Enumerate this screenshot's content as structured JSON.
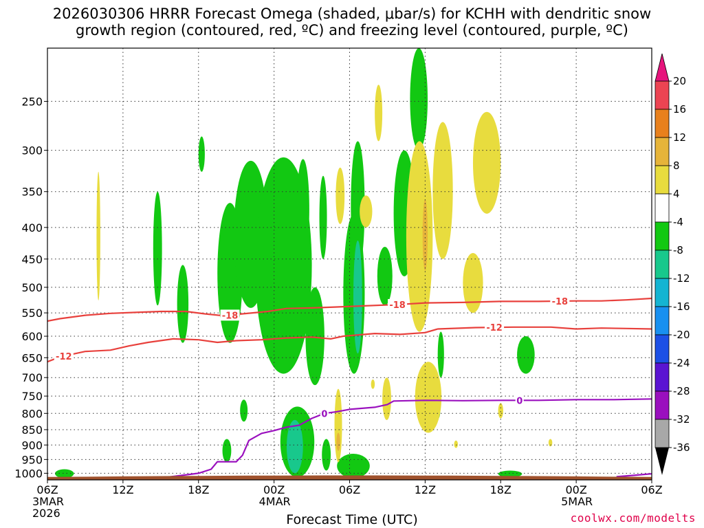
{
  "title_lines": [
    "2026030306 HRRR Forecast Omega (shaded, μbar/s) for KCHH with dendritic snow",
    "growth region (contoured, red, ºC) and freezing level (contoured, purple, ºC)"
  ],
  "credit": "coolwx.com/modelts",
  "chart_data": {
    "type": "heatmap",
    "xlabel": "Forecast Time (UTC)",
    "x_range_hours": [
      0,
      48
    ],
    "x_ticks": [
      {
        "h": 0,
        "lines": [
          "06Z",
          "3MAR",
          "2026"
        ]
      },
      {
        "h": 6,
        "lines": [
          "12Z"
        ]
      },
      {
        "h": 12,
        "lines": [
          "18Z"
        ]
      },
      {
        "h": 18,
        "lines": [
          "00Z",
          "4MAR"
        ]
      },
      {
        "h": 24,
        "lines": [
          "06Z"
        ]
      },
      {
        "h": 30,
        "lines": [
          "12Z"
        ]
      },
      {
        "h": 36,
        "lines": [
          "18Z"
        ]
      },
      {
        "h": 42,
        "lines": [
          "00Z",
          "5MAR"
        ]
      },
      {
        "h": 48,
        "lines": [
          "06Z"
        ]
      }
    ],
    "y_axis": "pressure (mb), log scale, inverted",
    "y_range_mb": [
      1025,
      205
    ],
    "y_ticks": [
      250,
      300,
      350,
      400,
      450,
      500,
      550,
      600,
      650,
      700,
      750,
      800,
      850,
      900,
      950,
      1000
    ],
    "grid": true,
    "colorbar": {
      "labels": [
        "20",
        "16",
        "12",
        "8",
        "4",
        "-4",
        "-8",
        "-12",
        "-16",
        "-20",
        "-24",
        "-28",
        "-32",
        "-36"
      ],
      "colors": [
        "#ec4452",
        "#e8801c",
        "#e6b43a",
        "#e8dc3e",
        "#ffffff",
        "#12c812",
        "#18c88c",
        "#14b4d2",
        "#1890f0",
        "#1c50e6",
        "#5a14d2",
        "#9a10be",
        "#a8a8a8"
      ],
      "top_arrow_color": "#e6147c",
      "bottom_arrow_color": "#000000"
    },
    "contours": [
      {
        "label": "-18",
        "color": "#e8403c",
        "points": [
          [
            0,
            567
          ],
          [
            1,
            562
          ],
          [
            3,
            555
          ],
          [
            5,
            551
          ],
          [
            7,
            549
          ],
          [
            9,
            547
          ],
          [
            11,
            547
          ],
          [
            12.5,
            552
          ],
          [
            14,
            556
          ],
          [
            15.5,
            552
          ],
          [
            17.5,
            547
          ],
          [
            19,
            541
          ],
          [
            21,
            540
          ],
          [
            23,
            538
          ],
          [
            25,
            536
          ],
          [
            28,
            533
          ],
          [
            30,
            530
          ],
          [
            33,
            529
          ],
          [
            36,
            527
          ],
          [
            39,
            527
          ],
          [
            42,
            526
          ],
          [
            44,
            526
          ],
          [
            46,
            524
          ],
          [
            48,
            521
          ]
        ],
        "label_hours": [
          14.5,
          27.8,
          40.7
        ]
      },
      {
        "label": "-12",
        "color": "#e8403c",
        "points": [
          [
            0,
            660
          ],
          [
            1,
            648
          ],
          [
            3,
            635
          ],
          [
            5,
            632
          ],
          [
            6.5,
            622
          ],
          [
            8,
            614
          ],
          [
            10,
            606
          ],
          [
            12,
            608
          ],
          [
            13.5,
            614
          ],
          [
            15,
            610
          ],
          [
            17,
            608
          ],
          [
            19,
            604
          ],
          [
            21,
            602
          ],
          [
            22.5,
            606
          ],
          [
            23.5,
            600
          ],
          [
            26,
            594
          ],
          [
            28,
            596
          ],
          [
            30,
            592
          ],
          [
            31,
            584
          ],
          [
            34,
            581
          ],
          [
            37,
            580
          ],
          [
            40,
            580
          ],
          [
            42,
            584
          ],
          [
            44,
            582
          ],
          [
            46,
            583
          ],
          [
            48,
            584
          ]
        ],
        "label_hours": [
          1.3,
          35.5
        ]
      },
      {
        "label": "0",
        "color": "#9a10be",
        "points": [
          [
            8.5,
            1020
          ],
          [
            10,
            1012
          ],
          [
            12,
            1000
          ],
          [
            13,
            985
          ],
          [
            13.5,
            958
          ],
          [
            15,
            958
          ],
          [
            15.5,
            935
          ],
          [
            16,
            885
          ],
          [
            17,
            862
          ],
          [
            18,
            853
          ],
          [
            19,
            842
          ],
          [
            20,
            836
          ],
          [
            21,
            815
          ],
          [
            22,
            800
          ],
          [
            23,
            795
          ],
          [
            24,
            788
          ],
          [
            26,
            782
          ],
          [
            27,
            774
          ],
          [
            27.5,
            764
          ],
          [
            30,
            762
          ],
          [
            33,
            763
          ],
          [
            36,
            762
          ],
          [
            39,
            762
          ],
          [
            42,
            760
          ],
          [
            45,
            760
          ],
          [
            48,
            758
          ]
        ],
        "label_hours": [
          22,
          37.5
        ]
      },
      {
        "label": "",
        "color": "#9a10be",
        "points": [
          [
            45.2,
            1013
          ],
          [
            46.5,
            1008
          ],
          [
            48,
            1002
          ]
        ],
        "label_hours": []
      }
    ],
    "omega_blobs": [
      {
        "value": 6,
        "t0": 3.9,
        "t1": 4.2,
        "p_top": 325,
        "p_bot": 525
      },
      {
        "value": -6,
        "t0": 8.4,
        "t1": 9.1,
        "p_top": 350,
        "p_bot": 535
      },
      {
        "value": -6,
        "t0": 10.3,
        "t1": 11.2,
        "p_top": 460,
        "p_bot": 615
      },
      {
        "value": -6,
        "t0": 12.0,
        "t1": 12.5,
        "p_top": 285,
        "p_bot": 325
      },
      {
        "value": -6,
        "t0": 13.5,
        "t1": 15.5,
        "p_top": 365,
        "p_bot": 615
      },
      {
        "value": -6,
        "t0": 14.8,
        "t1": 17.5,
        "p_top": 312,
        "p_bot": 540
      },
      {
        "value": -6,
        "t0": 16.5,
        "t1": 21.0,
        "p_top": 308,
        "p_bot": 690
      },
      {
        "value": -6,
        "t0": 19.8,
        "t1": 20.8,
        "p_top": 310,
        "p_bot": 450
      },
      {
        "value": -6,
        "t0": 20.5,
        "t1": 22.0,
        "p_top": 500,
        "p_bot": 720
      },
      {
        "value": -6,
        "t0": 21.6,
        "t1": 22.2,
        "p_top": 330,
        "p_bot": 450
      },
      {
        "value": -6,
        "t0": 23.5,
        "t1": 25.2,
        "p_top": 380,
        "p_bot": 690
      },
      {
        "value": -6,
        "t0": 24.3,
        "t1": 24.8,
        "p_top": 300,
        "p_bot": 450
      },
      {
        "value": -6,
        "t0": 24.1,
        "t1": 25.2,
        "p_top": 290,
        "p_bot": 470
      },
      {
        "value": -6,
        "t0": 18.5,
        "t1": 21.2,
        "p_top": 780,
        "p_bot": 1015
      },
      {
        "value": -6,
        "t0": 15.3,
        "t1": 15.9,
        "p_top": 760,
        "p_bot": 825
      },
      {
        "value": -6,
        "t0": 13.9,
        "t1": 14.6,
        "p_top": 880,
        "p_bot": 960
      },
      {
        "value": -6,
        "t0": 21.8,
        "t1": 22.5,
        "p_top": 880,
        "p_bot": 990
      },
      {
        "value": -6,
        "t0": 23.0,
        "t1": 25.6,
        "p_top": 930,
        "p_bot": 1018
      },
      {
        "value": -6,
        "t0": 26.2,
        "t1": 27.4,
        "p_top": 430,
        "p_bot": 535
      },
      {
        "value": -6,
        "t0": 27.5,
        "t1": 29.2,
        "p_top": 300,
        "p_bot": 480
      },
      {
        "value": -6,
        "t0": 28.8,
        "t1": 30.2,
        "p_top": 205,
        "p_bot": 300
      },
      {
        "value": -6,
        "t0": 31.0,
        "t1": 31.5,
        "p_top": 590,
        "p_bot": 700
      },
      {
        "value": -6,
        "t0": 30.9,
        "t1": 31.2,
        "p_top": 770,
        "p_bot": 815
      },
      {
        "value": -6,
        "t0": 37.3,
        "t1": 38.7,
        "p_top": 600,
        "p_bot": 690
      },
      {
        "value": -6,
        "t0": 35.8,
        "t1": 37.7,
        "p_top": 990,
        "p_bot": 1015
      },
      {
        "value": -6,
        "t0": 0.6,
        "t1": 2.1,
        "p_top": 985,
        "p_bot": 1018
      },
      {
        "value": -10,
        "t0": 19.0,
        "t1": 20.3,
        "p_top": 820,
        "p_bot": 1000
      },
      {
        "value": -10,
        "t0": 24.3,
        "t1": 25.0,
        "p_top": 420,
        "p_bot": 640
      },
      {
        "value": 6,
        "t0": 22.9,
        "t1": 23.6,
        "p_top": 320,
        "p_bot": 395
      },
      {
        "value": 6,
        "t0": 24.8,
        "t1": 25.8,
        "p_top": 355,
        "p_bot": 400
      },
      {
        "value": 6,
        "t0": 26.0,
        "t1": 26.6,
        "p_top": 235,
        "p_bot": 290
      },
      {
        "value": 6,
        "t0": 28.5,
        "t1": 30.6,
        "p_top": 290,
        "p_bot": 590
      },
      {
        "value": 6,
        "t0": 30.6,
        "t1": 32.2,
        "p_top": 270,
        "p_bot": 450
      },
      {
        "value": 6,
        "t0": 33.8,
        "t1": 36.0,
        "p_top": 260,
        "p_bot": 380
      },
      {
        "value": 6,
        "t0": 33.0,
        "t1": 34.6,
        "p_top": 440,
        "p_bot": 550
      },
      {
        "value": 6,
        "t0": 26.6,
        "t1": 27.3,
        "p_top": 700,
        "p_bot": 820
      },
      {
        "value": 6,
        "t0": 29.2,
        "t1": 31.3,
        "p_top": 660,
        "p_bot": 860
      },
      {
        "value": 6,
        "t0": 29.8,
        "t1": 30.8,
        "p_top": 700,
        "p_bot": 830
      },
      {
        "value": 6,
        "t0": 22.8,
        "t1": 23.4,
        "p_top": 730,
        "p_bot": 960
      },
      {
        "value": 10,
        "t0": 22.95,
        "t1": 23.25,
        "p_top": 860,
        "p_bot": 920
      },
      {
        "value": 10,
        "t0": 29.8,
        "t1": 30.2,
        "p_top": 360,
        "p_bot": 470
      },
      {
        "value": 6,
        "t0": 32.3,
        "t1": 32.6,
        "p_top": 885,
        "p_bot": 910
      },
      {
        "value": 6,
        "t0": 35.8,
        "t1": 36.2,
        "p_top": 770,
        "p_bot": 815
      },
      {
        "value": 6,
        "t0": 39.8,
        "t1": 40.1,
        "p_top": 880,
        "p_bot": 905
      },
      {
        "value": 6,
        "t0": 25.7,
        "t1": 26.0,
        "p_top": 705,
        "p_bot": 730
      }
    ],
    "ground_color": "#a0522d"
  }
}
